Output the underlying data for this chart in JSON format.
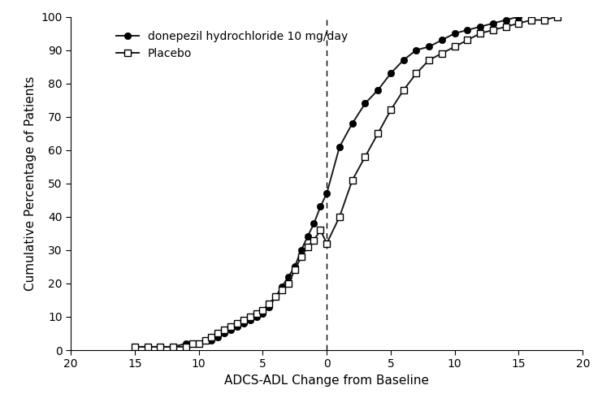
{
  "donepezil_x": [
    15,
    14,
    13,
    12,
    11,
    10,
    9,
    8.5,
    8,
    7.5,
    7,
    6.5,
    6,
    5.5,
    5,
    4.5,
    4,
    3.5,
    3,
    2.5,
    2,
    1.5,
    1,
    0.5,
    0,
    -1,
    -2,
    -3,
    -4,
    -5,
    -6,
    -7,
    -8,
    -9,
    -10,
    -11,
    -12,
    -13,
    -14,
    -15
  ],
  "donepezil_y": [
    1,
    1,
    1,
    1,
    2,
    2,
    3,
    4,
    5,
    6,
    7,
    8,
    9,
    10,
    11,
    13,
    16,
    19,
    22,
    25,
    30,
    34,
    38,
    43,
    47,
    61,
    68,
    74,
    78,
    83,
    87,
    90,
    91,
    93,
    95,
    96,
    97,
    98,
    99,
    100
  ],
  "placebo_x": [
    15,
    14,
    13,
    12,
    11,
    10.5,
    10,
    9.5,
    9,
    8.5,
    8,
    7.5,
    7,
    6.5,
    6,
    5.5,
    5,
    4.5,
    4,
    3.5,
    3,
    2.5,
    2,
    1.5,
    1,
    0.5,
    0,
    -1,
    -2,
    -3,
    -4,
    -5,
    -6,
    -7,
    -8,
    -9,
    -10,
    -11,
    -12,
    -13,
    -14,
    -15,
    -16,
    -17,
    -18
  ],
  "placebo_y": [
    1,
    1,
    1,
    1,
    1,
    2,
    2,
    3,
    4,
    5,
    6,
    7,
    8,
    9,
    10,
    11,
    12,
    14,
    16,
    18,
    20,
    24,
    28,
    31,
    33,
    36,
    32,
    40,
    51,
    58,
    65,
    72,
    78,
    83,
    87,
    89,
    91,
    93,
    95,
    96,
    97,
    98,
    99,
    99,
    100
  ],
  "xlabel": "ADCS-ADL Change from Baseline",
  "ylabel": "Cumulative Percentage of Patients",
  "donepezil_label": "donepezil hydrochloride 10 mg/day",
  "placebo_label": "Placebo",
  "xlim_left": 20,
  "xlim_right": -20,
  "ylim": [
    0,
    100
  ],
  "yticks": [
    0,
    10,
    20,
    30,
    40,
    50,
    60,
    70,
    80,
    90,
    100
  ],
  "xticks": [
    20,
    15,
    10,
    5,
    0,
    -5,
    -10,
    -15,
    -20
  ],
  "vline_x": 0,
  "line_color": "#1a1a1a",
  "background_color": "#ffffff",
  "tick_fontsize": 10,
  "label_fontsize": 11,
  "legend_fontsize": 10,
  "linewidth": 1.4,
  "marker_size": 6
}
